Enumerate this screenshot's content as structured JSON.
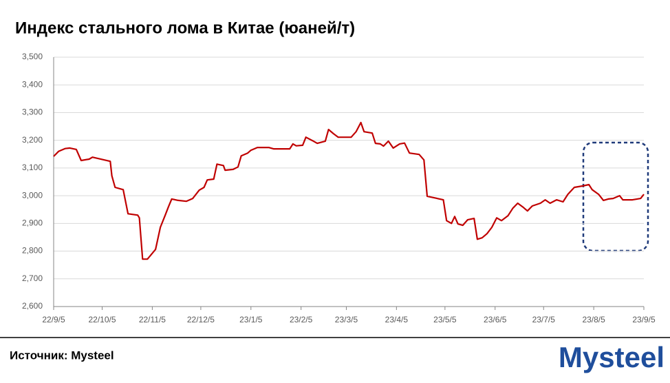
{
  "chart_data": {
    "type": "line",
    "title": "Индекс стального лома в Китае (юаней/т)",
    "source": "Источник: Mysteel",
    "logo": "Mysteel",
    "x": [
      "22/9/5",
      "22/9/8",
      "22/9/12",
      "22/9/15",
      "22/9/19",
      "22/9/22",
      "22/9/27",
      "22/9/29",
      "22/10/10",
      "22/10/11",
      "22/10/13",
      "22/10/18",
      "22/10/19",
      "22/10/21",
      "22/10/27",
      "22/10/28",
      "22/10/30",
      "22/11/2",
      "22/11/7",
      "22/11/10",
      "22/11/13",
      "22/11/15",
      "22/11/17",
      "22/11/21",
      "22/11/26",
      "22/11/30",
      "22/12/4",
      "22/12/7",
      "22/12/9",
      "22/12/13",
      "22/12/15",
      "22/12/19",
      "22/12/20",
      "22/12/25",
      "22/12/28",
      "22/12/30",
      "23/1/3",
      "23/1/5",
      "23/1/9",
      "23/1/16",
      "23/1/19",
      "23/1/29",
      "23/1/31",
      "23/2/2",
      "23/2/6",
      "23/2/8",
      "23/2/12",
      "23/2/15",
      "23/2/20",
      "23/2/22",
      "23/2/25",
      "23/2/28",
      "23/3/8",
      "23/3/11",
      "23/3/14",
      "23/3/16",
      "23/3/21",
      "23/3/23",
      "23/3/26",
      "23/3/28",
      "23/3/31",
      "23/4/3",
      "23/4/7",
      "23/4/10",
      "23/4/13",
      "23/4/19",
      "23/4/22",
      "23/4/24",
      "23/4/28",
      "23/5/4",
      "23/5/6",
      "23/5/9",
      "23/5/11",
      "23/5/13",
      "23/5/16",
      "23/5/19",
      "23/5/23",
      "23/5/25",
      "23/5/28",
      "23/5/31",
      "23/6/3",
      "23/6/6",
      "23/6/9",
      "23/6/13",
      "23/6/16",
      "23/6/19",
      "23/6/22",
      "23/6/25",
      "23/6/28",
      "23/7/3",
      "23/7/6",
      "23/7/9",
      "23/7/13",
      "23/7/17",
      "23/7/20",
      "23/7/24",
      "23/7/29",
      "23/8/2",
      "23/8/4",
      "23/8/8",
      "23/8/11",
      "23/8/14",
      "23/8/17",
      "23/8/21",
      "23/8/23",
      "23/8/29",
      "23/9/3",
      "23/9/5"
    ],
    "series": [
      {
        "name": "Индекс стального лома",
        "color": "#c00000",
        "values": [
          3142,
          3160,
          3170,
          3172,
          3167,
          3127,
          3132,
          3139,
          3124,
          3072,
          3030,
          3022,
          2993,
          2935,
          2930,
          2920,
          2771,
          2771,
          2806,
          2886,
          2930,
          2960,
          2988,
          2983,
          2980,
          2990,
          3020,
          3030,
          3057,
          3060,
          3114,
          3109,
          3092,
          3095,
          3104,
          3144,
          3154,
          3164,
          3174,
          3174,
          3169,
          3169,
          3187,
          3180,
          3182,
          3211,
          3199,
          3189,
          3197,
          3239,
          3224,
          3211,
          3211,
          3231,
          3264,
          3231,
          3226,
          3189,
          3187,
          3179,
          3197,
          3172,
          3187,
          3190,
          3154,
          3149,
          3129,
          2998,
          2993,
          2985,
          2910,
          2900,
          2925,
          2898,
          2893,
          2913,
          2918,
          2843,
          2848,
          2863,
          2886,
          2920,
          2910,
          2928,
          2955,
          2973,
          2960,
          2945,
          2963,
          2973,
          2985,
          2973,
          2985,
          2978,
          3005,
          3030,
          3035,
          3040,
          3022,
          3005,
          2983,
          2988,
          2990,
          3000,
          2985,
          2985,
          2990,
          3005
        ]
      }
    ],
    "xlim": [
      "22/9/5",
      "23/9/5"
    ],
    "xticks": [
      "22/9/5",
      "22/10/5",
      "22/11/5",
      "22/12/5",
      "23/1/5",
      "23/2/5",
      "23/3/5",
      "23/4/5",
      "23/5/5",
      "23/6/5",
      "23/7/5",
      "23/8/5",
      "23/9/5"
    ],
    "ylim": [
      2600,
      3500
    ],
    "yticks": [
      {
        "value": 2600,
        "label": "2,600"
      },
      {
        "value": 2700,
        "label": "2,700"
      },
      {
        "value": 2800,
        "label": "2,800"
      },
      {
        "value": 2900,
        "label": "2,900"
      },
      {
        "value": 3000,
        "label": "3,000"
      },
      {
        "value": 3100,
        "label": "3,100"
      },
      {
        "value": 3200,
        "label": "3,200"
      },
      {
        "value": 3300,
        "label": "3,300"
      },
      {
        "value": 3400,
        "label": "3,400"
      },
      {
        "value": 3500,
        "label": "3,500"
      }
    ],
    "grid": true
  }
}
